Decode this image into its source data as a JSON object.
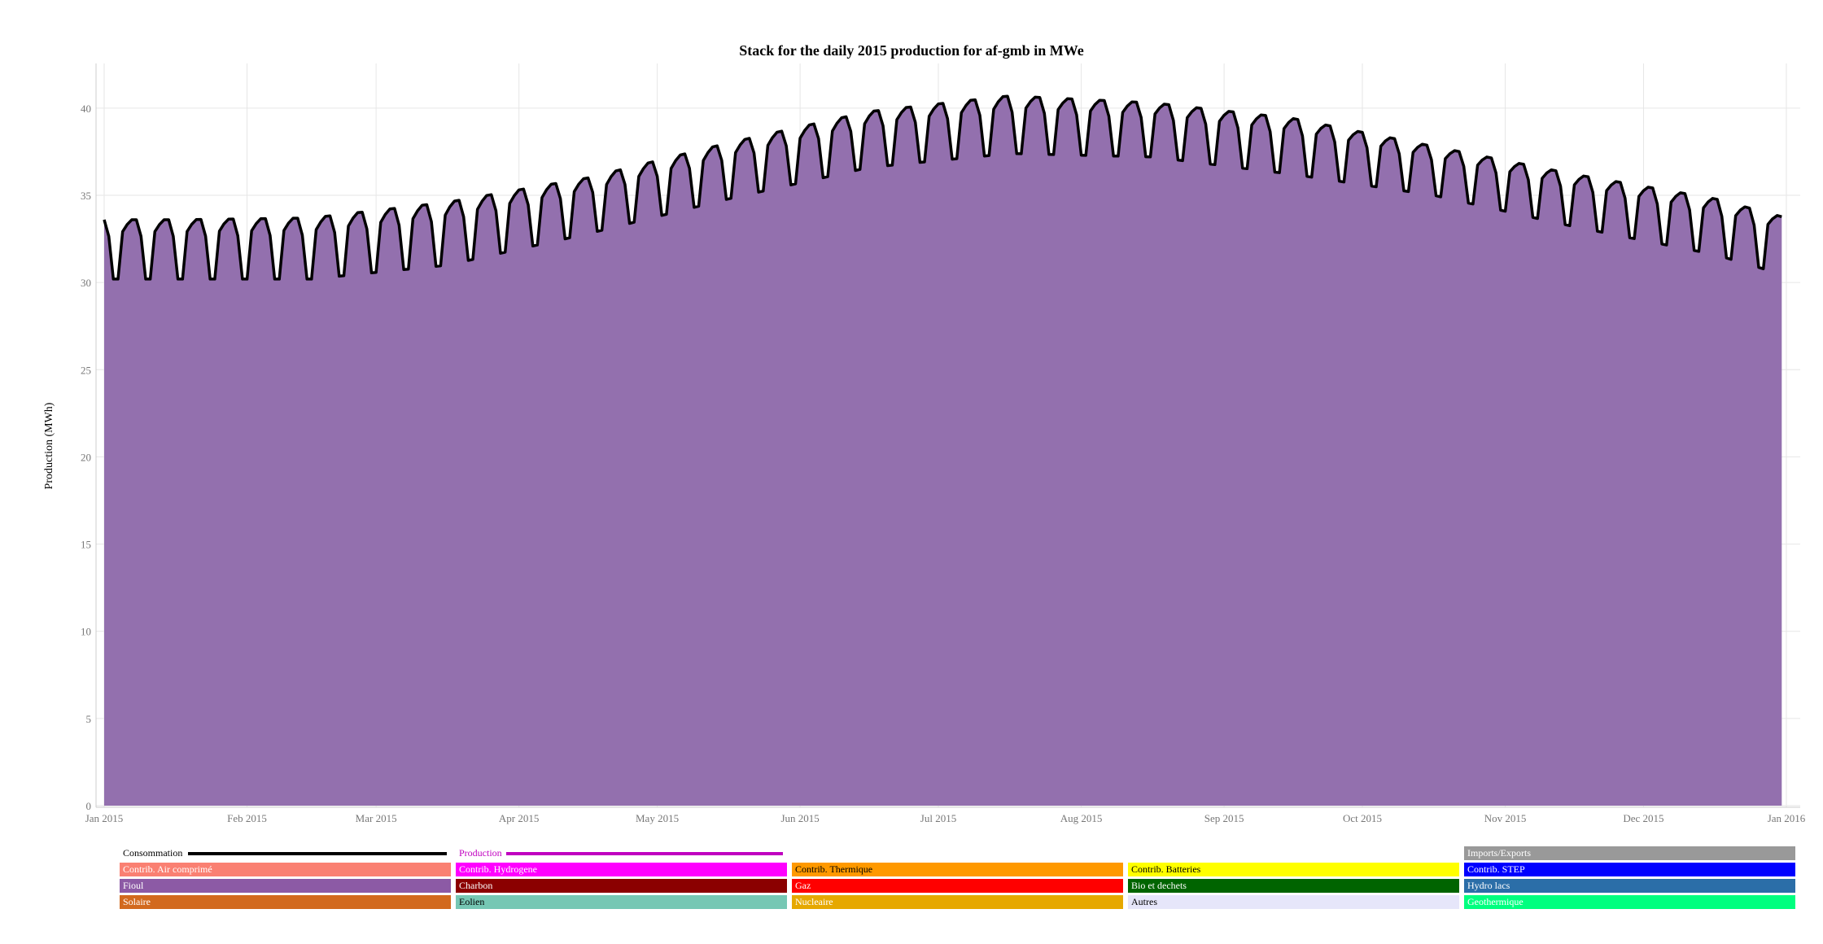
{
  "chart_data": {
    "type": "area",
    "title": "Stack for the daily 2015 production for af-gmb in MWe",
    "xlabel": "",
    "ylabel": "Production (MWh)",
    "ylim": [
      0,
      42
    ],
    "yticks": [
      0,
      5,
      10,
      15,
      20,
      25,
      30,
      35,
      40
    ],
    "xticks": [
      "Jan 2015",
      "Feb 2015",
      "Mar 2015",
      "Apr 2015",
      "May 2015",
      "Jun 2015",
      "Jul 2015",
      "Aug 2015",
      "Sep 2015",
      "Oct 2015",
      "Nov 2015",
      "Dec 2015",
      "Jan 2016"
    ],
    "x_start": "2015-01-01",
    "x_end": "2015-12-31",
    "grid": true,
    "area_color": "#9370ae",
    "consumption_color": "#000000",
    "weekly_pattern": "weekdays high, weekend low",
    "series": [
      {
        "name": "Fioul",
        "color": "#9370ae",
        "monthly_peak": [
          33.6,
          33.7,
          34.6,
          36.0,
          38.0,
          39.8,
          40.7,
          40.3,
          39.4,
          37.8,
          36.2,
          34.8,
          33.7
        ],
        "monthly_trough": [
          30.2,
          30.2,
          31.0,
          32.8,
          34.8,
          36.6,
          37.4,
          37.2,
          36.2,
          35.0,
          33.2,
          31.6,
          30.4
        ]
      },
      {
        "name": "Consommation",
        "color": "#000000",
        "monthly_peak": [
          33.6,
          33.7,
          34.6,
          36.0,
          38.0,
          39.8,
          40.7,
          40.3,
          39.4,
          37.8,
          36.2,
          34.8,
          33.7
        ],
        "monthly_trough": [
          30.2,
          30.2,
          31.0,
          32.8,
          34.8,
          36.6,
          37.4,
          37.2,
          36.2,
          35.0,
          33.2,
          31.6,
          30.4
        ]
      }
    ]
  },
  "legend": {
    "lines": [
      {
        "label": "Consommation",
        "color": "#000000"
      },
      {
        "label": "Production",
        "color": "#c000c0"
      }
    ],
    "items": [
      {
        "label": "Imports/Exports",
        "color": "#999999",
        "text_color": "#ffffff"
      },
      {
        "label": "Contrib. Air comprimé",
        "color": "#fa8072",
        "text_color": "#ffffff"
      },
      {
        "label": "Contrib. Hydrogene",
        "color": "#ff00ff",
        "text_color": "#ffffff"
      },
      {
        "label": "Contrib. Thermique",
        "color": "#ff9900",
        "text_color": "#000000"
      },
      {
        "label": "Contrib. Batteries",
        "color": "#ffff00",
        "text_color": "#000000"
      },
      {
        "label": "Contrib. STEP",
        "color": "#0000ff",
        "text_color": "#ffffff"
      },
      {
        "label": "Fioul",
        "color": "#8c5aa5",
        "text_color": "#ffffff"
      },
      {
        "label": "Charbon",
        "color": "#8b0000",
        "text_color": "#ffffff"
      },
      {
        "label": "Gaz",
        "color": "#ff0000",
        "text_color": "#ffffff"
      },
      {
        "label": "Bio et dechets",
        "color": "#006400",
        "text_color": "#ffffff"
      },
      {
        "label": "Hydro lacs",
        "color": "#2b6ea8",
        "text_color": "#ffffff"
      },
      {
        "label": "Solaire",
        "color": "#d2691e",
        "text_color": "#ffffff"
      },
      {
        "label": "Eolien",
        "color": "#76c7b4",
        "text_color": "#000000"
      },
      {
        "label": "Nucleaire",
        "color": "#e6a800",
        "text_color": "#ffffff"
      },
      {
        "label": "Autres",
        "color": "#e6e6fa",
        "text_color": "#000000"
      },
      {
        "label": "Geothermique",
        "color": "#00ff7f",
        "text_color": "#ffffff"
      }
    ]
  }
}
